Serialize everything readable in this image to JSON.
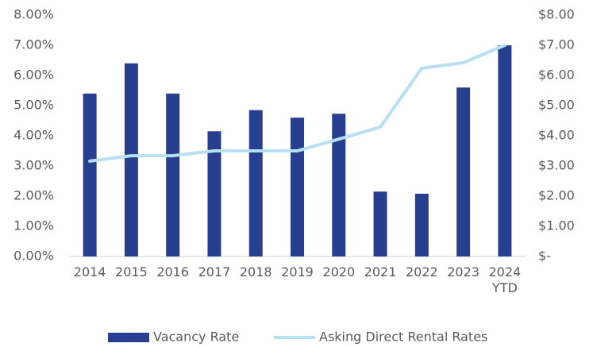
{
  "chart_data": {
    "type": "bar-line",
    "categories": [
      "2014",
      "2015",
      "2016",
      "2017",
      "2018",
      "2019",
      "2020",
      "2021",
      "2022",
      "2023",
      "2024 YTD"
    ],
    "series": [
      {
        "name": "Vacancy Rate",
        "type": "bar",
        "axis": "y",
        "color": "#283f8f",
        "values": [
          5.4,
          6.4,
          5.4,
          4.15,
          4.85,
          4.6,
          4.73,
          2.15,
          2.08,
          5.6,
          7.0
        ]
      },
      {
        "name": "Asking Direct Rental Rates",
        "type": "line",
        "axis": "y2",
        "color": "#b7e0f2",
        "values": [
          3.16,
          3.34,
          3.34,
          3.5,
          3.5,
          3.5,
          3.89,
          4.29,
          6.24,
          6.42,
          7.0
        ]
      }
    ],
    "ylim": [
      0,
      8
    ],
    "yticks": [
      {
        "value": 0,
        "label": "0.00%"
      },
      {
        "value": 1,
        "label": "1.00%"
      },
      {
        "value": 2,
        "label": "2.00%"
      },
      {
        "value": 3,
        "label": "3.00%"
      },
      {
        "value": 4,
        "label": "4.00%"
      },
      {
        "value": 5,
        "label": "5.00%"
      },
      {
        "value": 6,
        "label": "6.00%"
      },
      {
        "value": 7,
        "label": "7.00%"
      },
      {
        "value": 8,
        "label": "8.00%"
      }
    ],
    "y2lim": [
      0,
      8
    ],
    "y2ticks": [
      {
        "value": 0,
        "label": "$-"
      },
      {
        "value": 1,
        "label": "$1.00"
      },
      {
        "value": 2,
        "label": "$2.00"
      },
      {
        "value": 3,
        "label": "$3.00"
      },
      {
        "value": 4,
        "label": "$4.00"
      },
      {
        "value": 5,
        "label": "$5.00"
      },
      {
        "value": 6,
        "label": "$6.00"
      },
      {
        "value": 7,
        "label": "$7.00"
      },
      {
        "value": 8,
        "label": "$8.00"
      }
    ],
    "legend": "bottom"
  }
}
